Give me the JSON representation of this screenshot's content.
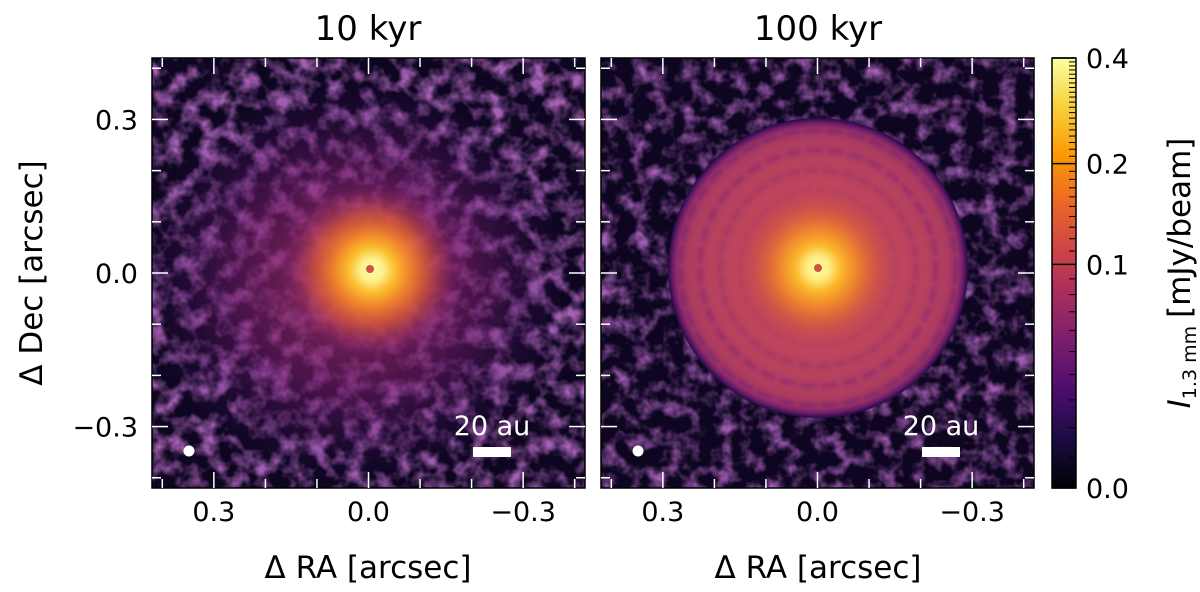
{
  "chart_data": {
    "type": "heatmap",
    "panels": [
      {
        "title": "10 kyr",
        "scale_bar_label": "20 au",
        "structure": "central bright source with diffuse, asymmetric envelope and patchy background",
        "peak_intensity_mJy_per_beam": 0.4
      },
      {
        "title": "100 kyr",
        "scale_bar_label": "20 au",
        "structure": "central bright source surrounded by a disk with concentric ring features",
        "peak_intensity_mJy_per_beam": 0.4
      }
    ],
    "xlabel": "Δ RA [arcsec]",
    "ylabel": "Δ Dec [arcsec]",
    "x_ticks": [
      "0.3",
      "0.0",
      "−0.3"
    ],
    "x_tick_values": [
      0.3,
      0.0,
      -0.3
    ],
    "y_ticks": [
      "0.3",
      "0.0",
      "−0.3"
    ],
    "y_tick_values": [
      0.3,
      0.0,
      -0.3
    ],
    "xlim": [
      0.42,
      -0.42
    ],
    "ylim": [
      -0.42,
      0.42
    ],
    "colorbar": {
      "label_main": "I",
      "label_sub": "1.3 mm",
      "label_unit": "[mJy/beam]",
      "ticks": [
        "0.4",
        "0.2",
        "0.1",
        "0.0"
      ],
      "tick_values": [
        0.4,
        0.2,
        0.1,
        0.0
      ],
      "range": [
        0.0,
        0.4
      ],
      "colormap": [
        "#000004",
        "#1b0c41",
        "#4a0c6b",
        "#781c6d",
        "#a52c60",
        "#cf4446",
        "#ed6925",
        "#fb9b06",
        "#f7d13d",
        "#fcffa4"
      ]
    }
  }
}
